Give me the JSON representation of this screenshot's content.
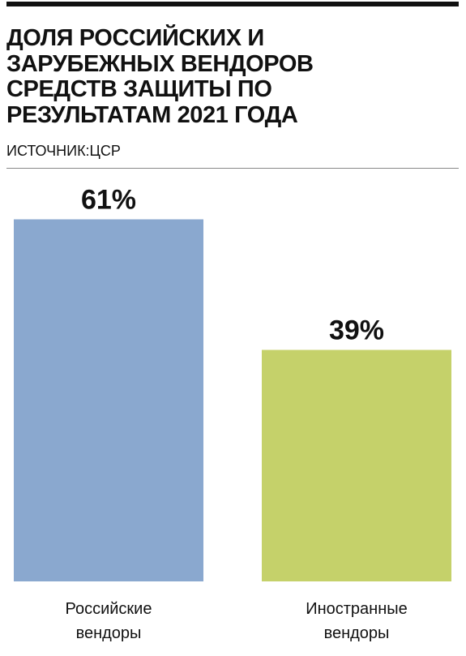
{
  "chart_data": {
    "type": "bar",
    "title": "ДОЛЯ РОССИЙСКИХ И ЗАРУБЕЖНЫХ ВЕНДОРОВ СРЕДСТВ ЗАЩИТЫ ПО РЕЗУЛЬТАТАМ 2021 ГОДА",
    "source": "ИСТОЧНИК:ЦСР",
    "categories": [
      "Российские вендоры",
      "Иностранные вендоры"
    ],
    "values": [
      61,
      39
    ],
    "value_labels": [
      "61%",
      "39%"
    ],
    "colors": [
      "#8aa8cf",
      "#c5d16a"
    ]
  }
}
